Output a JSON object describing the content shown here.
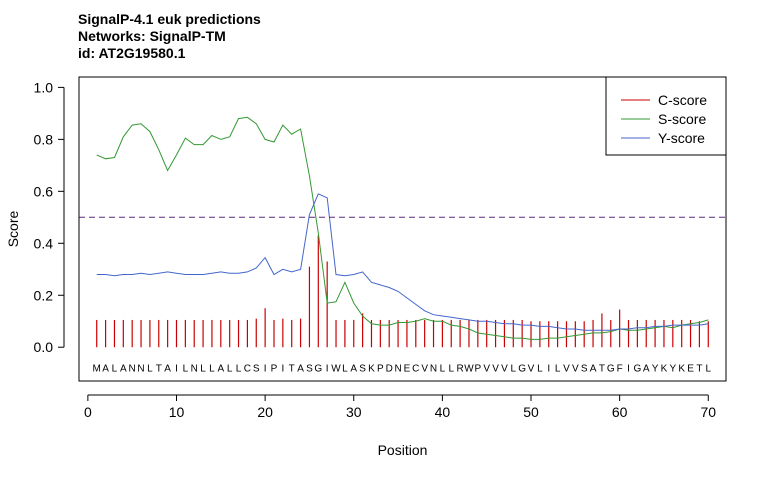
{
  "chart_data": {
    "type": "line",
    "title_lines": [
      "SignalP-4.1 euk predictions",
      "Networks: SignalP-TM",
      "id: AT2G19580.1"
    ],
    "xlabel": "Position",
    "ylabel": "Score",
    "xlim": [
      -1,
      72
    ],
    "ylim": [
      -0.13,
      1.04
    ],
    "x_ticks": [
      "0",
      "10",
      "20",
      "30",
      "40",
      "50",
      "60",
      "70"
    ],
    "y_ticks": [
      "0.0",
      "0.2",
      "0.4",
      "0.6",
      "0.8",
      "1.0"
    ],
    "threshold": 0.5,
    "sequence": [
      "M",
      "A",
      "L",
      "A",
      "N",
      "N",
      "L",
      "T",
      "A",
      "I",
      "L",
      "N",
      "L",
      "L",
      "A",
      "L",
      "L",
      "C",
      "S",
      "I",
      "P",
      "I",
      "T",
      "A",
      "S",
      "G",
      "I",
      "W",
      "L",
      "A",
      "S",
      "K",
      "P",
      "D",
      "N",
      "E",
      "C",
      "V",
      "N",
      "L",
      "L",
      "R",
      "W",
      "P",
      "V",
      "V",
      "V",
      "L",
      "G",
      "V",
      "L",
      "I",
      "L",
      "V",
      "V",
      "S",
      "A",
      "T",
      "G",
      "F",
      "I",
      "G",
      "A",
      "Y",
      "K",
      "Y",
      "K",
      "E",
      "T",
      "L"
    ],
    "legend_position": "top-right",
    "series": [
      {
        "name": "C-score",
        "color": "#cc0000",
        "style": "bars",
        "values": [
          0.105,
          0.105,
          0.105,
          0.105,
          0.105,
          0.105,
          0.105,
          0.105,
          0.105,
          0.105,
          0.105,
          0.105,
          0.105,
          0.105,
          0.105,
          0.105,
          0.105,
          0.105,
          0.11,
          0.15,
          0.105,
          0.11,
          0.105,
          0.11,
          0.31,
          0.43,
          0.33,
          0.105,
          0.105,
          0.105,
          0.13,
          0.105,
          0.105,
          0.105,
          0.105,
          0.105,
          0.105,
          0.105,
          0.105,
          0.105,
          0.105,
          0.105,
          0.105,
          0.105,
          0.105,
          0.105,
          0.105,
          0.105,
          0.105,
          0.1,
          0.1,
          0.1,
          0.1,
          0.1,
          0.1,
          0.1,
          0.105,
          0.13,
          0.105,
          0.145,
          0.105,
          0.105,
          0.105,
          0.105,
          0.105,
          0.105,
          0.105,
          0.105,
          0.1,
          0.1
        ]
      },
      {
        "name": "S-score",
        "color": "#339933",
        "style": "line",
        "values": [
          0.74,
          0.725,
          0.73,
          0.81,
          0.855,
          0.86,
          0.83,
          0.76,
          0.68,
          0.74,
          0.805,
          0.78,
          0.78,
          0.815,
          0.8,
          0.81,
          0.88,
          0.885,
          0.86,
          0.8,
          0.79,
          0.855,
          0.82,
          0.84,
          0.66,
          0.44,
          0.17,
          0.175,
          0.25,
          0.17,
          0.12,
          0.09,
          0.085,
          0.085,
          0.095,
          0.095,
          0.1,
          0.11,
          0.1,
          0.1,
          0.085,
          0.08,
          0.07,
          0.055,
          0.05,
          0.045,
          0.04,
          0.035,
          0.035,
          0.03,
          0.03,
          0.035,
          0.035,
          0.04,
          0.045,
          0.05,
          0.055,
          0.055,
          0.06,
          0.07,
          0.065,
          0.065,
          0.07,
          0.075,
          0.08,
          0.075,
          0.085,
          0.09,
          0.095,
          0.105
        ]
      },
      {
        "name": "Y-score",
        "color": "#4466cc",
        "style": "line",
        "values": [
          0.28,
          0.28,
          0.275,
          0.28,
          0.28,
          0.285,
          0.28,
          0.285,
          0.29,
          0.285,
          0.28,
          0.28,
          0.28,
          0.285,
          0.29,
          0.285,
          0.285,
          0.29,
          0.305,
          0.345,
          0.28,
          0.3,
          0.29,
          0.3,
          0.51,
          0.59,
          0.575,
          0.28,
          0.275,
          0.28,
          0.29,
          0.25,
          0.24,
          0.23,
          0.215,
          0.19,
          0.165,
          0.14,
          0.125,
          0.12,
          0.115,
          0.11,
          0.105,
          0.1,
          0.1,
          0.095,
          0.09,
          0.09,
          0.085,
          0.085,
          0.08,
          0.08,
          0.075,
          0.07,
          0.07,
          0.065,
          0.065,
          0.065,
          0.065,
          0.07,
          0.07,
          0.075,
          0.075,
          0.08,
          0.08,
          0.085,
          0.085,
          0.085,
          0.085,
          0.09
        ]
      }
    ]
  }
}
